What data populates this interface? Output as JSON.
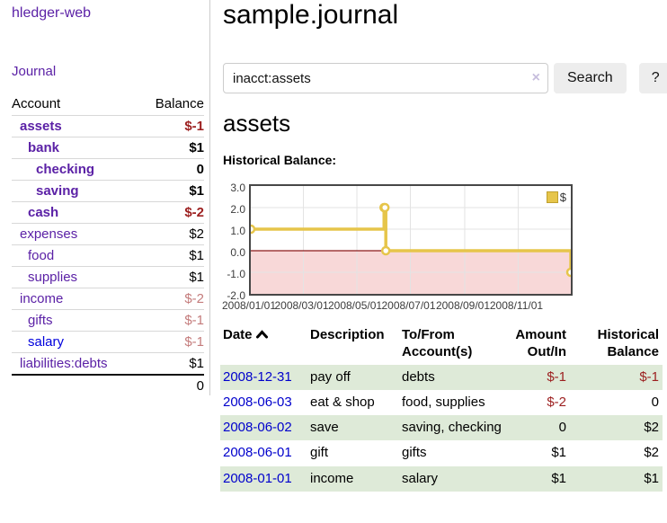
{
  "colors": {
    "accent_purple": "#5b21a6",
    "link_blue": "#0000dd",
    "negative_red": "#9c1f1f",
    "negative_faded": "#c47c7c",
    "row_stripe_green": "#deead8",
    "series_gold": "#e6c54a",
    "negative_region_pink": "#f8d8d8",
    "zero_line_red": "#8b1a1a"
  },
  "sidebar": {
    "app_title": "hledger-web",
    "journal_link": "Journal",
    "accounts": {
      "headers": {
        "account": "Account",
        "balance": "Balance"
      },
      "rows": [
        {
          "label": "assets",
          "depth": 1,
          "bold": true,
          "balance": "$-1",
          "balance_style": "neg"
        },
        {
          "label": "bank",
          "depth": 2,
          "bold": true,
          "balance": "$1",
          "balance_style": ""
        },
        {
          "label": "checking",
          "depth": 3,
          "bold": true,
          "balance": "0",
          "balance_style": ""
        },
        {
          "label": "saving",
          "depth": 3,
          "bold": true,
          "balance": "$1",
          "balance_style": ""
        },
        {
          "label": "cash",
          "depth": 2,
          "bold": true,
          "balance": "$-2",
          "balance_style": "neg"
        },
        {
          "label": "expenses",
          "depth": 1,
          "bold": false,
          "balance": "$2",
          "balance_style": ""
        },
        {
          "label": "food",
          "depth": 2,
          "bold": false,
          "balance": "$1",
          "balance_style": ""
        },
        {
          "label": "supplies",
          "depth": 2,
          "bold": false,
          "balance": "$1",
          "balance_style": ""
        },
        {
          "label": "income",
          "depth": 1,
          "bold": false,
          "balance": "$-2",
          "balance_style": "neg-faded"
        },
        {
          "label": "gifts",
          "depth": 2,
          "bold": false,
          "balance": "$-1",
          "balance_style": "neg-faded"
        },
        {
          "label": "salary",
          "depth": 2,
          "bold": false,
          "link_style": "blue",
          "balance": "$-1",
          "balance_style": "neg-faded"
        },
        {
          "label": "liabilities:debts",
          "depth": 1,
          "bold": false,
          "balance": "$1",
          "balance_style": ""
        }
      ],
      "total": "0"
    }
  },
  "main": {
    "title": "sample.journal",
    "search": {
      "value": "inacct:assets",
      "clear_icon": "×",
      "button_label": "Search",
      "help_label": "?"
    },
    "account_heading": "assets"
  },
  "chart_data": {
    "type": "line",
    "title": "Historical Balance:",
    "legend": [
      {
        "label": "$",
        "color": "#e6c54a"
      }
    ],
    "x_ticks": [
      "2008/01/01",
      "2008/03/01",
      "2008/05/01",
      "2008/07/01",
      "2008/09/01",
      "2008/11/01"
    ],
    "x_tick_days": [
      0,
      60,
      121,
      182,
      244,
      305
    ],
    "x_range_days": 365,
    "y_ticks": [
      "3.0",
      "2.0",
      "1.0",
      "0.0",
      "-1.0",
      "-2.0"
    ],
    "ylim": [
      -2,
      3
    ],
    "step": true,
    "points": [
      {
        "date": "2008-01-01",
        "day": 0,
        "value": 1
      },
      {
        "date": "2008-06-01",
        "day": 152,
        "value": 2
      },
      {
        "date": "2008-06-02",
        "day": 153,
        "value": 2
      },
      {
        "date": "2008-06-03",
        "day": 154,
        "value": 0
      },
      {
        "date": "2008-12-31",
        "day": 365,
        "value": -1
      }
    ],
    "series_color": "#e6c54a",
    "marker_fill": "#ffffff",
    "zero_line_color": "#8b1a1a",
    "negative_region_color": "#f8d8d8",
    "grid": true,
    "legend_position": "top-right"
  },
  "register_table": {
    "headers": {
      "date": "Date",
      "description": "Description",
      "accounts_line1": "To/From",
      "accounts_line2": "Account(s)",
      "amount_line1": "Amount",
      "amount_line2": "Out/In",
      "balance_line1": "Historical",
      "balance_line2": "Balance"
    },
    "rows": [
      {
        "date": "2008-12-31",
        "description": "pay off",
        "accounts": "debts",
        "amount": "$-1",
        "amount_style": "neg",
        "balance": "$-1",
        "balance_style": "neg",
        "striped": true
      },
      {
        "date": "2008-06-03",
        "description": "eat & shop",
        "accounts": "food, supplies",
        "amount": "$-2",
        "amount_style": "neg",
        "balance": "0",
        "balance_style": "",
        "striped": false
      },
      {
        "date": "2008-06-02",
        "description": "save",
        "accounts": "saving, checking",
        "amount": "0",
        "amount_style": "",
        "balance": "$2",
        "balance_style": "",
        "striped": true
      },
      {
        "date": "2008-06-01",
        "description": "gift",
        "accounts": "gifts",
        "amount": "$1",
        "amount_style": "",
        "balance": "$2",
        "balance_style": "",
        "striped": false
      },
      {
        "date": "2008-01-01",
        "description": "income",
        "accounts": "salary",
        "amount": "$1",
        "amount_style": "",
        "balance": "$1",
        "balance_style": "",
        "striped": true
      }
    ]
  }
}
